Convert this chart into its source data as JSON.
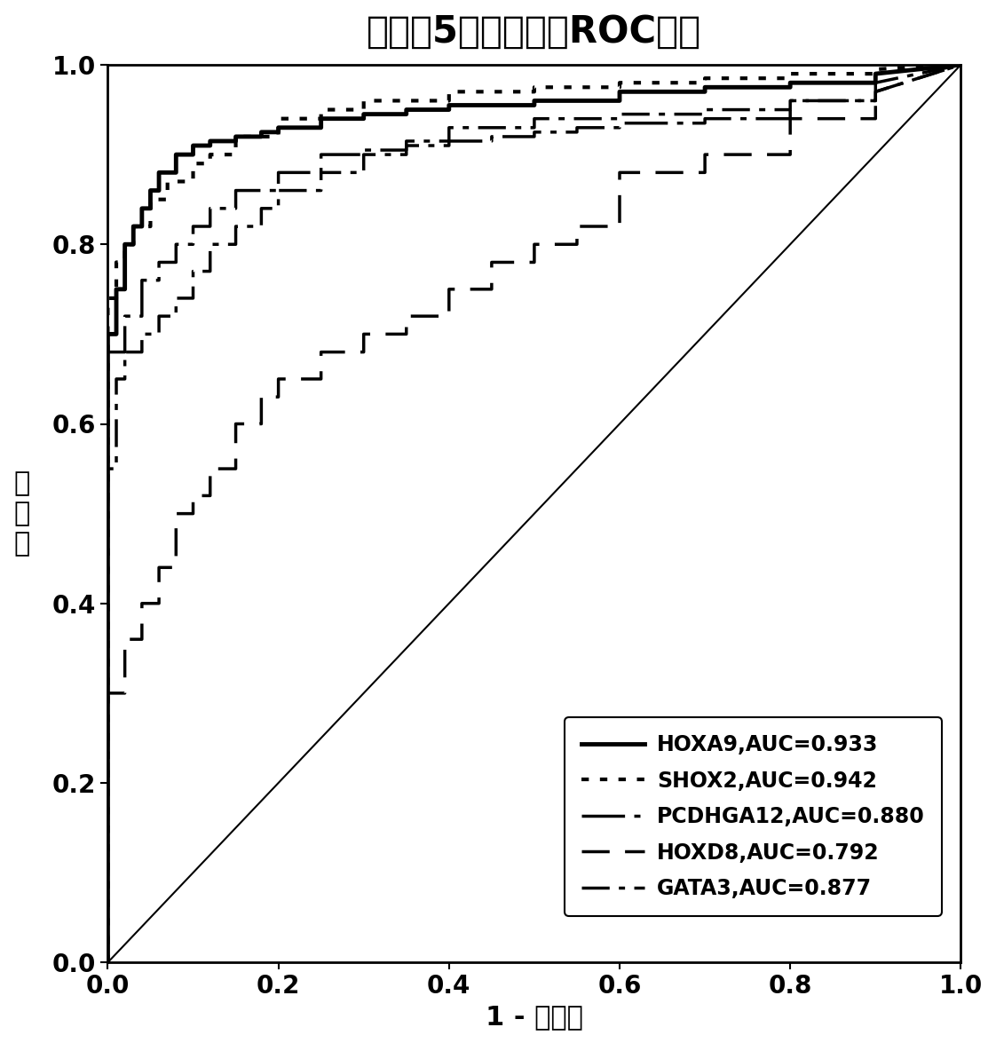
{
  "title": "组织中5个标志物的ROC曲线",
  "xlabel": "1 - 特异性",
  "ylabel": "敏\n感\n度",
  "xlim": [
    0.0,
    1.0
  ],
  "ylim": [
    0.0,
    1.0
  ],
  "xticks": [
    0.0,
    0.2,
    0.4,
    0.6,
    0.8,
    1.0
  ],
  "yticks": [
    0.0,
    0.2,
    0.4,
    0.6,
    0.8,
    1.0
  ],
  "curves": {
    "HOXA9": {
      "label": "HOXA9,AUC=0.933",
      "linestyle": "solid",
      "linewidth": 3.5,
      "color": "#000000",
      "fpr": [
        0.0,
        0.0,
        0.01,
        0.01,
        0.02,
        0.02,
        0.03,
        0.03,
        0.04,
        0.04,
        0.05,
        0.05,
        0.06,
        0.06,
        0.08,
        0.08,
        0.1,
        0.1,
        0.12,
        0.12,
        0.15,
        0.15,
        0.18,
        0.18,
        0.2,
        0.2,
        0.25,
        0.25,
        0.3,
        0.3,
        0.35,
        0.35,
        0.4,
        0.4,
        0.5,
        0.5,
        0.6,
        0.6,
        0.7,
        0.7,
        0.8,
        0.8,
        0.9,
        0.9,
        1.0
      ],
      "tpr": [
        0.0,
        0.7,
        0.7,
        0.75,
        0.75,
        0.8,
        0.8,
        0.82,
        0.82,
        0.84,
        0.84,
        0.86,
        0.86,
        0.88,
        0.88,
        0.9,
        0.9,
        0.91,
        0.91,
        0.915,
        0.915,
        0.92,
        0.92,
        0.925,
        0.925,
        0.93,
        0.93,
        0.94,
        0.94,
        0.945,
        0.945,
        0.95,
        0.95,
        0.955,
        0.955,
        0.96,
        0.96,
        0.97,
        0.97,
        0.975,
        0.975,
        0.98,
        0.98,
        0.99,
        1.0
      ]
    },
    "SHOX2": {
      "label": "SHOX2,AUC=0.942",
      "linestyle": "dotted",
      "linewidth": 3.0,
      "color": "#000000",
      "fpr": [
        0.0,
        0.0,
        0.01,
        0.01,
        0.02,
        0.02,
        0.03,
        0.03,
        0.05,
        0.05,
        0.07,
        0.07,
        0.1,
        0.1,
        0.12,
        0.12,
        0.15,
        0.15,
        0.2,
        0.2,
        0.25,
        0.25,
        0.3,
        0.3,
        0.4,
        0.4,
        0.5,
        0.5,
        0.6,
        0.6,
        0.7,
        0.7,
        0.8,
        0.8,
        0.9,
        0.9,
        1.0
      ],
      "tpr": [
        0.0,
        0.74,
        0.74,
        0.78,
        0.78,
        0.8,
        0.8,
        0.82,
        0.82,
        0.85,
        0.85,
        0.87,
        0.87,
        0.89,
        0.89,
        0.9,
        0.9,
        0.92,
        0.92,
        0.94,
        0.94,
        0.95,
        0.95,
        0.96,
        0.96,
        0.97,
        0.97,
        0.975,
        0.975,
        0.98,
        0.98,
        0.985,
        0.985,
        0.99,
        0.99,
        0.995,
        1.0
      ]
    },
    "PCDHGA12": {
      "label": "PCDHGA12,AUC=0.880",
      "linestyle": "longdashdot",
      "linewidth": 2.5,
      "color": "#000000",
      "fpr": [
        0.0,
        0.0,
        0.02,
        0.02,
        0.04,
        0.04,
        0.06,
        0.06,
        0.08,
        0.08,
        0.1,
        0.1,
        0.12,
        0.12,
        0.15,
        0.15,
        0.2,
        0.2,
        0.25,
        0.25,
        0.3,
        0.3,
        0.35,
        0.35,
        0.4,
        0.4,
        0.45,
        0.45,
        0.5,
        0.5,
        0.55,
        0.55,
        0.6,
        0.6,
        0.7,
        0.7,
        0.8,
        0.8,
        0.9,
        0.9,
        1.0
      ],
      "tpr": [
        0.0,
        0.68,
        0.68,
        0.72,
        0.72,
        0.76,
        0.76,
        0.78,
        0.78,
        0.8,
        0.8,
        0.82,
        0.82,
        0.84,
        0.84,
        0.86,
        0.86,
        0.88,
        0.88,
        0.9,
        0.9,
        0.905,
        0.905,
        0.91,
        0.91,
        0.915,
        0.915,
        0.92,
        0.92,
        0.925,
        0.925,
        0.93,
        0.93,
        0.935,
        0.935,
        0.94,
        0.94,
        0.96,
        0.96,
        0.98,
        1.0
      ]
    },
    "HOXD8": {
      "label": "HOXD8,AUC=0.792",
      "linestyle": "dashed",
      "linewidth": 2.5,
      "color": "#000000",
      "fpr": [
        0.0,
        0.0,
        0.02,
        0.02,
        0.04,
        0.04,
        0.06,
        0.06,
        0.08,
        0.08,
        0.1,
        0.1,
        0.12,
        0.12,
        0.15,
        0.15,
        0.18,
        0.18,
        0.2,
        0.2,
        0.25,
        0.25,
        0.3,
        0.3,
        0.35,
        0.35,
        0.4,
        0.4,
        0.45,
        0.45,
        0.5,
        0.5,
        0.55,
        0.55,
        0.6,
        0.6,
        0.7,
        0.7,
        0.8,
        0.8,
        0.9,
        0.9,
        1.0
      ],
      "tpr": [
        0.0,
        0.3,
        0.3,
        0.36,
        0.36,
        0.4,
        0.4,
        0.44,
        0.44,
        0.5,
        0.5,
        0.52,
        0.52,
        0.55,
        0.55,
        0.6,
        0.6,
        0.63,
        0.63,
        0.65,
        0.65,
        0.68,
        0.68,
        0.7,
        0.7,
        0.72,
        0.72,
        0.75,
        0.75,
        0.78,
        0.78,
        0.8,
        0.8,
        0.82,
        0.82,
        0.88,
        0.88,
        0.9,
        0.9,
        0.94,
        0.94,
        0.97,
        1.0
      ]
    },
    "GATA3": {
      "label": "GATA3,AUC=0.877",
      "linestyle": "dashdot",
      "linewidth": 2.5,
      "color": "#000000",
      "fpr": [
        0.0,
        0.0,
        0.01,
        0.01,
        0.02,
        0.02,
        0.04,
        0.04,
        0.06,
        0.06,
        0.08,
        0.08,
        0.1,
        0.1,
        0.12,
        0.12,
        0.15,
        0.15,
        0.18,
        0.18,
        0.2,
        0.2,
        0.25,
        0.25,
        0.3,
        0.3,
        0.35,
        0.35,
        0.4,
        0.4,
        0.5,
        0.5,
        0.6,
        0.6,
        0.7,
        0.7,
        0.8,
        0.8,
        0.9,
        0.9,
        1.0
      ],
      "tpr": [
        0.0,
        0.55,
        0.55,
        0.65,
        0.65,
        0.68,
        0.68,
        0.7,
        0.7,
        0.72,
        0.72,
        0.74,
        0.74,
        0.77,
        0.77,
        0.8,
        0.8,
        0.82,
        0.82,
        0.84,
        0.84,
        0.86,
        0.86,
        0.88,
        0.88,
        0.9,
        0.9,
        0.915,
        0.915,
        0.93,
        0.93,
        0.94,
        0.94,
        0.945,
        0.945,
        0.95,
        0.95,
        0.96,
        0.96,
        0.97,
        1.0
      ]
    }
  },
  "background_color": "#ffffff",
  "title_fontsize": 30,
  "label_fontsize": 22,
  "tick_fontsize": 20,
  "legend_fontsize": 17
}
